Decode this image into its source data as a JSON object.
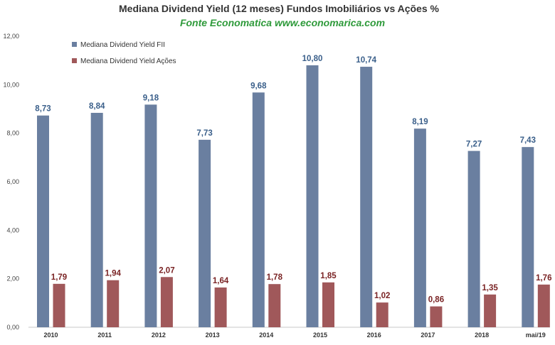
{
  "chart_data": {
    "type": "bar",
    "title": "Mediana Dividend Yield (12 meses) Fundos Imobiliários vs Ações %",
    "subtitle": "Fonte Economatica www.economarica.com",
    "xlabel": "",
    "ylabel": "",
    "ylim": [
      0,
      12
    ],
    "yticks": [
      "0,00",
      "2,00",
      "4,00",
      "6,00",
      "8,00",
      "10,00",
      "12,00"
    ],
    "ytick_values": [
      0,
      2,
      4,
      6,
      8,
      10,
      12
    ],
    "grid": false,
    "legend_position": "top-left",
    "categories": [
      "2010",
      "2011",
      "2012",
      "2013",
      "2014",
      "2015",
      "2016",
      "2017",
      "2018",
      "mai/19"
    ],
    "series": [
      {
        "name": "Mediana Dividend Yield FII",
        "color": "#6a7fa0",
        "label_color": "#3a5f8a",
        "values": [
          8.73,
          8.84,
          9.18,
          7.73,
          9.68,
          10.8,
          10.74,
          8.19,
          7.27,
          7.43
        ],
        "labels": [
          "8,73",
          "8,84",
          "9,18",
          "7,73",
          "9,68",
          "10,80",
          "10,74",
          "8,19",
          "7,27",
          "7,43"
        ]
      },
      {
        "name": "Mediana Dividend Yield Ações",
        "color": "#a0585a",
        "label_color": "#7a2324",
        "values": [
          1.79,
          1.94,
          2.07,
          1.64,
          1.78,
          1.85,
          1.02,
          0.86,
          1.35,
          1.76
        ],
        "labels": [
          "1,79",
          "1,94",
          "2,07",
          "1,64",
          "1,78",
          "1,85",
          "1,02",
          "0,86",
          "1,35",
          "1,76"
        ]
      }
    ]
  }
}
